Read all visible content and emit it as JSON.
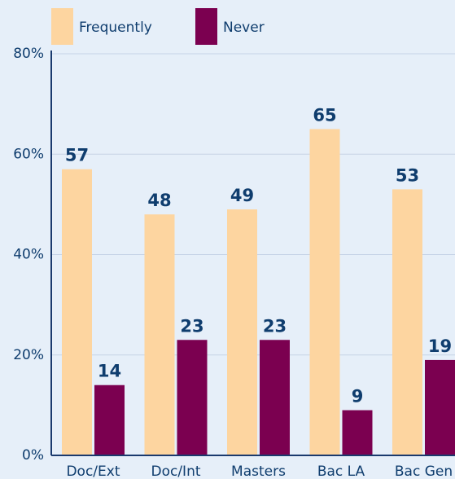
{
  "chart_data": {
    "type": "bar",
    "categories": [
      "Doc/Ext",
      "Doc/Int",
      "Masters",
      "Bac LA",
      "Bac Gen"
    ],
    "series": [
      {
        "name": "Frequently",
        "color": "#fdd5a0",
        "values": [
          57,
          48,
          49,
          65,
          53
        ]
      },
      {
        "name": "Never",
        "color": "#7b0050",
        "values": [
          14,
          23,
          23,
          9,
          19
        ]
      }
    ],
    "ylim": [
      0,
      80
    ],
    "yticks": [
      {
        "value": 0,
        "label": "0%"
      },
      {
        "value": 20,
        "label": "20%"
      },
      {
        "value": 40,
        "label": "40%"
      },
      {
        "value": 60,
        "label": "60%"
      },
      {
        "value": 80,
        "label": "80%"
      }
    ],
    "grid": true
  }
}
